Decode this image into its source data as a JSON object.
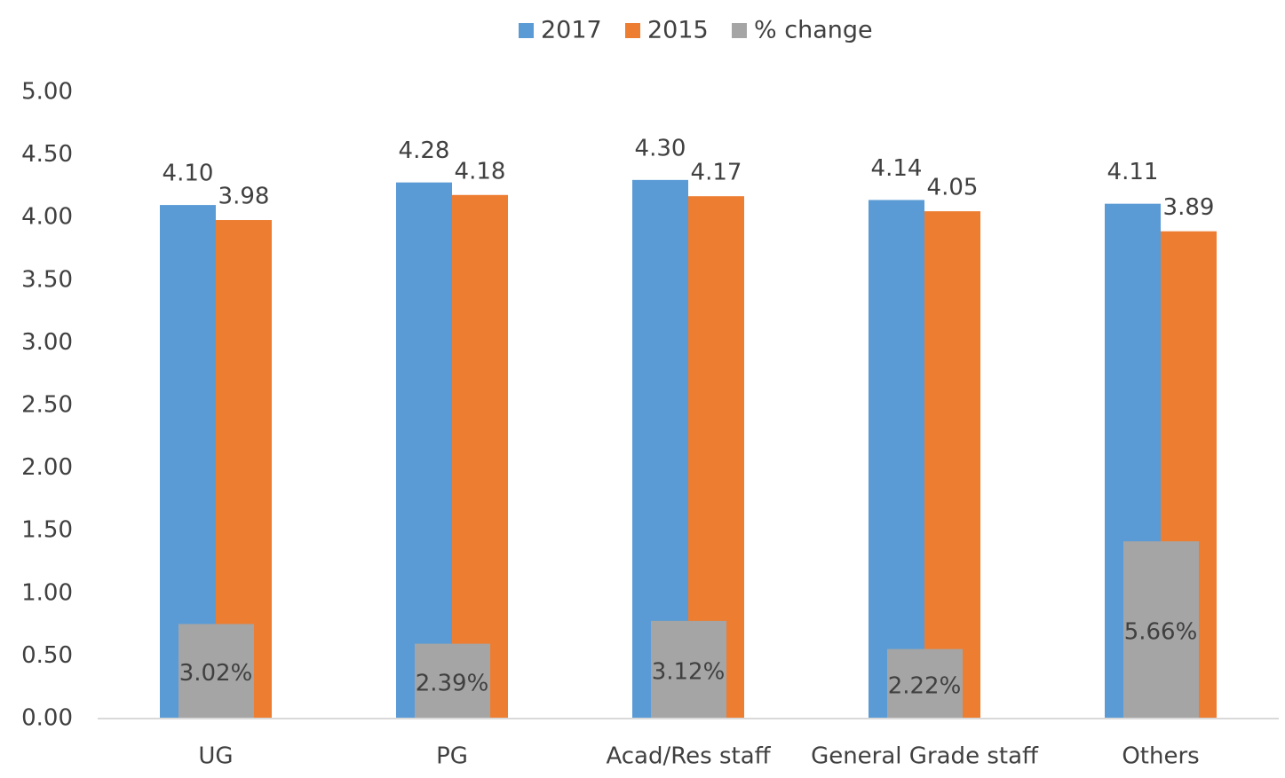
{
  "chart_data": {
    "type": "bar",
    "categories": [
      "UG",
      "PG",
      "Acad/Res staff",
      "General Grade staff",
      "Others"
    ],
    "series": [
      {
        "name": "2017",
        "color": "#5b9bd5",
        "values": [
          4.1,
          4.28,
          4.3,
          4.14,
          4.11
        ],
        "value_labels": [
          "4.10",
          "4.28",
          "4.30",
          "4.14",
          "4.11"
        ]
      },
      {
        "name": "2015",
        "color": "#ed7d31",
        "values": [
          3.98,
          4.18,
          4.17,
          4.05,
          3.89
        ],
        "value_labels": [
          "3.98",
          "4.18",
          "4.17",
          "4.05",
          "3.89"
        ]
      },
      {
        "name": "% change",
        "color": "#a5a5a5",
        "axis": "y2",
        "values": [
          3.02,
          2.39,
          3.12,
          2.22,
          5.66
        ],
        "value_labels": [
          "3.02%",
          "2.39%",
          "3.12%",
          "2.22%",
          "5.66%"
        ]
      }
    ],
    "ylim": [
      0,
      5
    ],
    "yticks": [
      {
        "value": 0,
        "label": "0.00"
      },
      {
        "value": 0.5,
        "label": "0.50"
      },
      {
        "value": 1,
        "label": "1.00"
      },
      {
        "value": 1.5,
        "label": "1.50"
      },
      {
        "value": 2,
        "label": "2.00"
      },
      {
        "value": 2.5,
        "label": "2.50"
      },
      {
        "value": 3,
        "label": "3.00"
      },
      {
        "value": 3.5,
        "label": "3.50"
      },
      {
        "value": 4,
        "label": "4.00"
      },
      {
        "value": 4.5,
        "label": "4.50"
      },
      {
        "value": 5,
        "label": "5.00"
      }
    ],
    "y2lim": [
      0,
      20
    ],
    "grid": false,
    "legend": "top"
  }
}
